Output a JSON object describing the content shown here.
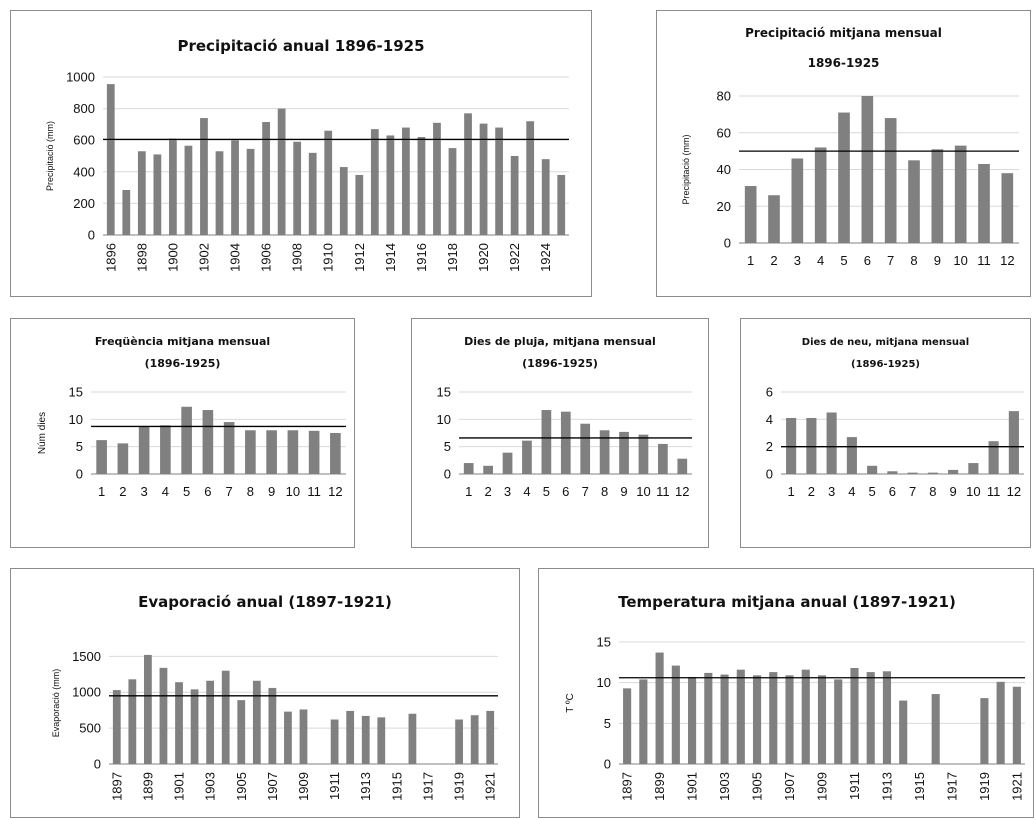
{
  "chart_data": [
    {
      "id": "c1",
      "type": "bar",
      "title_lines": [
        "Precipitació anual 1896-1925"
      ],
      "ylabel": "Precipitació (mm)",
      "ylim": [
        0,
        1000
      ],
      "yticks": [
        0,
        200,
        400,
        600,
        800,
        1000
      ],
      "mean": 605,
      "categories": [
        "1896",
        "1897",
        "1898",
        "1899",
        "1900",
        "1901",
        "1902",
        "1903",
        "1904",
        "1905",
        "1906",
        "1907",
        "1908",
        "1909",
        "1910",
        "1911",
        "1912",
        "1913",
        "1914",
        "1915",
        "1916",
        "1917",
        "1918",
        "1919",
        "1920",
        "1921",
        "1922",
        "1923",
        "1924",
        "1925"
      ],
      "xtick_labels": [
        "1896",
        "",
        "1898",
        "",
        "1900",
        "",
        "1902",
        "",
        "1904",
        "",
        "1906",
        "",
        "1908",
        "",
        "1910",
        "",
        "1912",
        "",
        "1914",
        "",
        "1916",
        "",
        "1918",
        "",
        "1920",
        "",
        "1922",
        "",
        "1924",
        ""
      ],
      "values": [
        955,
        285,
        530,
        510,
        610,
        565,
        740,
        530,
        600,
        545,
        715,
        800,
        590,
        520,
        660,
        430,
        380,
        670,
        630,
        680,
        620,
        710,
        550,
        770,
        705,
        680,
        500,
        720,
        480,
        380
      ],
      "grid": true,
      "bar_color": "#808080"
    },
    {
      "id": "c2",
      "type": "bar",
      "title_lines": [
        "Precipitació mitjana mensual",
        "1896-1925"
      ],
      "ylabel": "Precipitació (mm)",
      "ylim": [
        0,
        80
      ],
      "yticks": [
        0,
        20,
        40,
        60,
        80
      ],
      "mean": 50,
      "categories": [
        "1",
        "2",
        "3",
        "4",
        "5",
        "6",
        "7",
        "8",
        "9",
        "10",
        "11",
        "12"
      ],
      "xtick_labels": [
        "1",
        "2",
        "3",
        "4",
        "5",
        "6",
        "7",
        "8",
        "9",
        "10",
        "11",
        "12"
      ],
      "values": [
        31,
        26,
        46,
        52,
        71,
        80,
        68,
        45,
        51,
        53,
        43,
        38
      ],
      "grid": true,
      "bar_color": "#808080"
    },
    {
      "id": "c3",
      "type": "bar",
      "title_lines": [
        "Freqüència mitjana mensual",
        "(1896-1925)"
      ],
      "ylabel": "Núm dies",
      "ylim": [
        0,
        15
      ],
      "yticks": [
        0,
        5,
        10,
        15
      ],
      "mean": 8.7,
      "categories": [
        "1",
        "2",
        "3",
        "4",
        "5",
        "6",
        "7",
        "8",
        "9",
        "10",
        "11",
        "12"
      ],
      "xtick_labels": [
        "1",
        "2",
        "3",
        "4",
        "5",
        "6",
        "7",
        "8",
        "9",
        "10",
        "11",
        "12"
      ],
      "values": [
        6.2,
        5.6,
        8.6,
        8.9,
        12.3,
        11.7,
        9.5,
        8.0,
        8.0,
        8.0,
        7.9,
        7.5
      ],
      "grid": true,
      "bar_color": "#808080"
    },
    {
      "id": "c4",
      "type": "bar",
      "title_lines": [
        "Dies de pluja, mitjana mensual",
        "(1896-1925)"
      ],
      "ylabel": "",
      "ylim": [
        0,
        15
      ],
      "yticks": [
        0,
        5,
        10,
        15
      ],
      "mean": 6.6,
      "categories": [
        "1",
        "2",
        "3",
        "4",
        "5",
        "6",
        "7",
        "8",
        "9",
        "10",
        "11",
        "12"
      ],
      "xtick_labels": [
        "1",
        "2",
        "3",
        "4",
        "5",
        "6",
        "7",
        "8",
        "9",
        "10",
        "11",
        "12"
      ],
      "values": [
        2.0,
        1.5,
        3.9,
        6.1,
        11.7,
        11.4,
        9.2,
        8.0,
        7.7,
        7.2,
        5.5,
        2.8
      ],
      "grid": true,
      "bar_color": "#808080"
    },
    {
      "id": "c5",
      "type": "bar",
      "title_lines": [
        "Dies de neu, mitjana mensual",
        "(1896-1925)"
      ],
      "ylabel": "",
      "ylim": [
        0,
        6
      ],
      "yticks": [
        0,
        2,
        4,
        6
      ],
      "mean": 2.0,
      "categories": [
        "1",
        "2",
        "3",
        "4",
        "5",
        "6",
        "7",
        "8",
        "9",
        "10",
        "11",
        "12"
      ],
      "xtick_labels": [
        "1",
        "2",
        "3",
        "4",
        "5",
        "6",
        "7",
        "8",
        "9",
        "10",
        "11",
        "12"
      ],
      "values": [
        4.1,
        4.1,
        4.5,
        2.7,
        0.6,
        0.2,
        0.1,
        0.1,
        0.3,
        0.8,
        2.4,
        4.6
      ],
      "grid": true,
      "bar_color": "#808080"
    },
    {
      "id": "c6",
      "type": "bar",
      "title_lines": [
        "Evaporació anual (1897-1921)"
      ],
      "ylabel": "Evaporació (mm)",
      "ylim": [
        0,
        1700
      ],
      "yticks": [
        0,
        500,
        1000,
        1500
      ],
      "mean": 950,
      "categories": [
        "1897",
        "1898",
        "1899",
        "1900",
        "1901",
        "1902",
        "1903",
        "1904",
        "1905",
        "1906",
        "1907",
        "1908",
        "1909",
        "1910",
        "1911",
        "1912",
        "1913",
        "1914",
        "1915",
        "1916",
        "1917",
        "1918",
        "1919",
        "1920",
        "1921"
      ],
      "xtick_labels": [
        "1897",
        "",
        "1899",
        "",
        "1901",
        "",
        "1903",
        "",
        "1905",
        "",
        "1907",
        "",
        "1909",
        "",
        "1911",
        "",
        "1913",
        "",
        "1915",
        "",
        "1917",
        "",
        "1919",
        "",
        "1921"
      ],
      "values": [
        1030,
        1180,
        1520,
        1340,
        1140,
        1040,
        1160,
        1300,
        890,
        1160,
        1060,
        730,
        760,
        null,
        620,
        740,
        670,
        650,
        null,
        700,
        null,
        null,
        620,
        680,
        740
      ],
      "grid": true,
      "bar_color": "#808080"
    },
    {
      "id": "c7",
      "type": "bar",
      "title_lines": [
        "Temperatura mitjana anual (1897-1921)"
      ],
      "ylabel": "T ºC",
      "ylim": [
        0,
        15
      ],
      "yticks": [
        0,
        5,
        10,
        15
      ],
      "mean": 10.6,
      "categories": [
        "1897",
        "1898",
        "1899",
        "1900",
        "1901",
        "1902",
        "1903",
        "1904",
        "1905",
        "1906",
        "1907",
        "1908",
        "1909",
        "1910",
        "1911",
        "1912",
        "1913",
        "1914",
        "1915",
        "1916",
        "1917",
        "1918",
        "1919",
        "1920",
        "1921"
      ],
      "xtick_labels": [
        "1897",
        "",
        "1899",
        "",
        "1901",
        "",
        "1903",
        "",
        "1905",
        "",
        "1907",
        "",
        "1909",
        "",
        "1911",
        "",
        "1913",
        "",
        "1915",
        "",
        "1917",
        "",
        "1919",
        "",
        "1921"
      ],
      "values": [
        9.3,
        10.4,
        13.7,
        12.1,
        10.7,
        11.2,
        11.0,
        11.6,
        10.9,
        11.3,
        10.9,
        11.6,
        10.9,
        10.4,
        11.8,
        11.3,
        11.4,
        7.8,
        null,
        8.6,
        null,
        null,
        8.1,
        10.1,
        9.5
      ],
      "grid": true,
      "bar_color": "#808080"
    }
  ]
}
